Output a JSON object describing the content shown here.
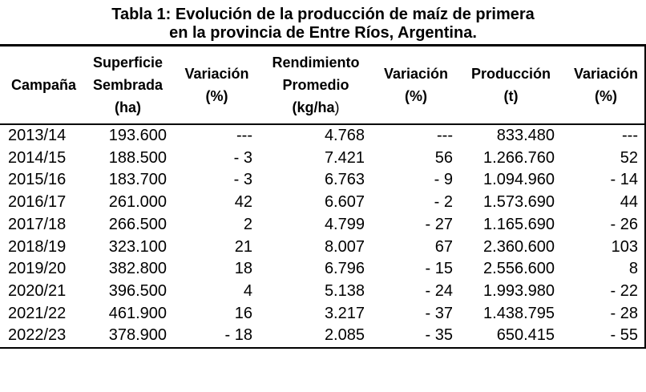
{
  "title": {
    "line1": "Tabla 1: Evolución de la producción de maíz de primera",
    "line2": "en la provincia de Entre Ríos, Argentina."
  },
  "chart_data": {
    "type": "table",
    "columns": [
      {
        "id": "campana",
        "label_lines": [
          "Campaña"
        ],
        "align": "left"
      },
      {
        "id": "superficie",
        "label_lines": [
          "Superficie",
          "Sembrada",
          "(ha)"
        ],
        "align": "right"
      },
      {
        "id": "variacion-1",
        "label_lines": [
          "Variación",
          "(%)"
        ],
        "align": "right"
      },
      {
        "id": "rendimiento",
        "label_lines": [
          "Rendimiento",
          "Promedio",
          "(kg/ha"
        ],
        "label_tail": ")",
        "align": "right"
      },
      {
        "id": "variacion-2",
        "label_lines": [
          "Variación",
          "(%)"
        ],
        "align": "right"
      },
      {
        "id": "produccion",
        "label_lines": [
          "Producción",
          "(t)"
        ],
        "align": "right"
      },
      {
        "id": "variacion-3",
        "label_lines": [
          "Variación",
          "(%)"
        ],
        "align": "right"
      }
    ],
    "rows": [
      [
        "2013/14",
        "193.600",
        "---",
        "4.768",
        "---",
        "833.480",
        "---"
      ],
      [
        "2014/15",
        "188.500",
        "- 3",
        "7.421",
        "56",
        "1.266.760",
        "52"
      ],
      [
        "2015/16",
        "183.700",
        "- 3",
        "6.763",
        "- 9",
        "1.094.960",
        "- 14"
      ],
      [
        "2016/17",
        "261.000",
        "42",
        "6.607",
        "- 2",
        "1.573.690",
        "44"
      ],
      [
        "2017/18",
        "266.500",
        "2",
        "4.799",
        "- 27",
        "1.165.690",
        "- 26"
      ],
      [
        "2018/19",
        "323.100",
        "21",
        "8.007",
        "67",
        "2.360.600",
        "103"
      ],
      [
        "2019/20",
        "382.800",
        "18",
        "6.796",
        "- 15",
        "2.556.600",
        "8"
      ],
      [
        "2020/21",
        "396.500",
        "4",
        "5.138",
        "- 24",
        "1.993.980",
        "- 22"
      ],
      [
        "2021/22",
        "461.900",
        "16",
        "3.217",
        "- 37",
        "1.438.795",
        "- 28"
      ],
      [
        "2022/23",
        "378.900",
        "- 18",
        "2.085",
        "- 35",
        "650.415",
        "- 55"
      ]
    ]
  }
}
